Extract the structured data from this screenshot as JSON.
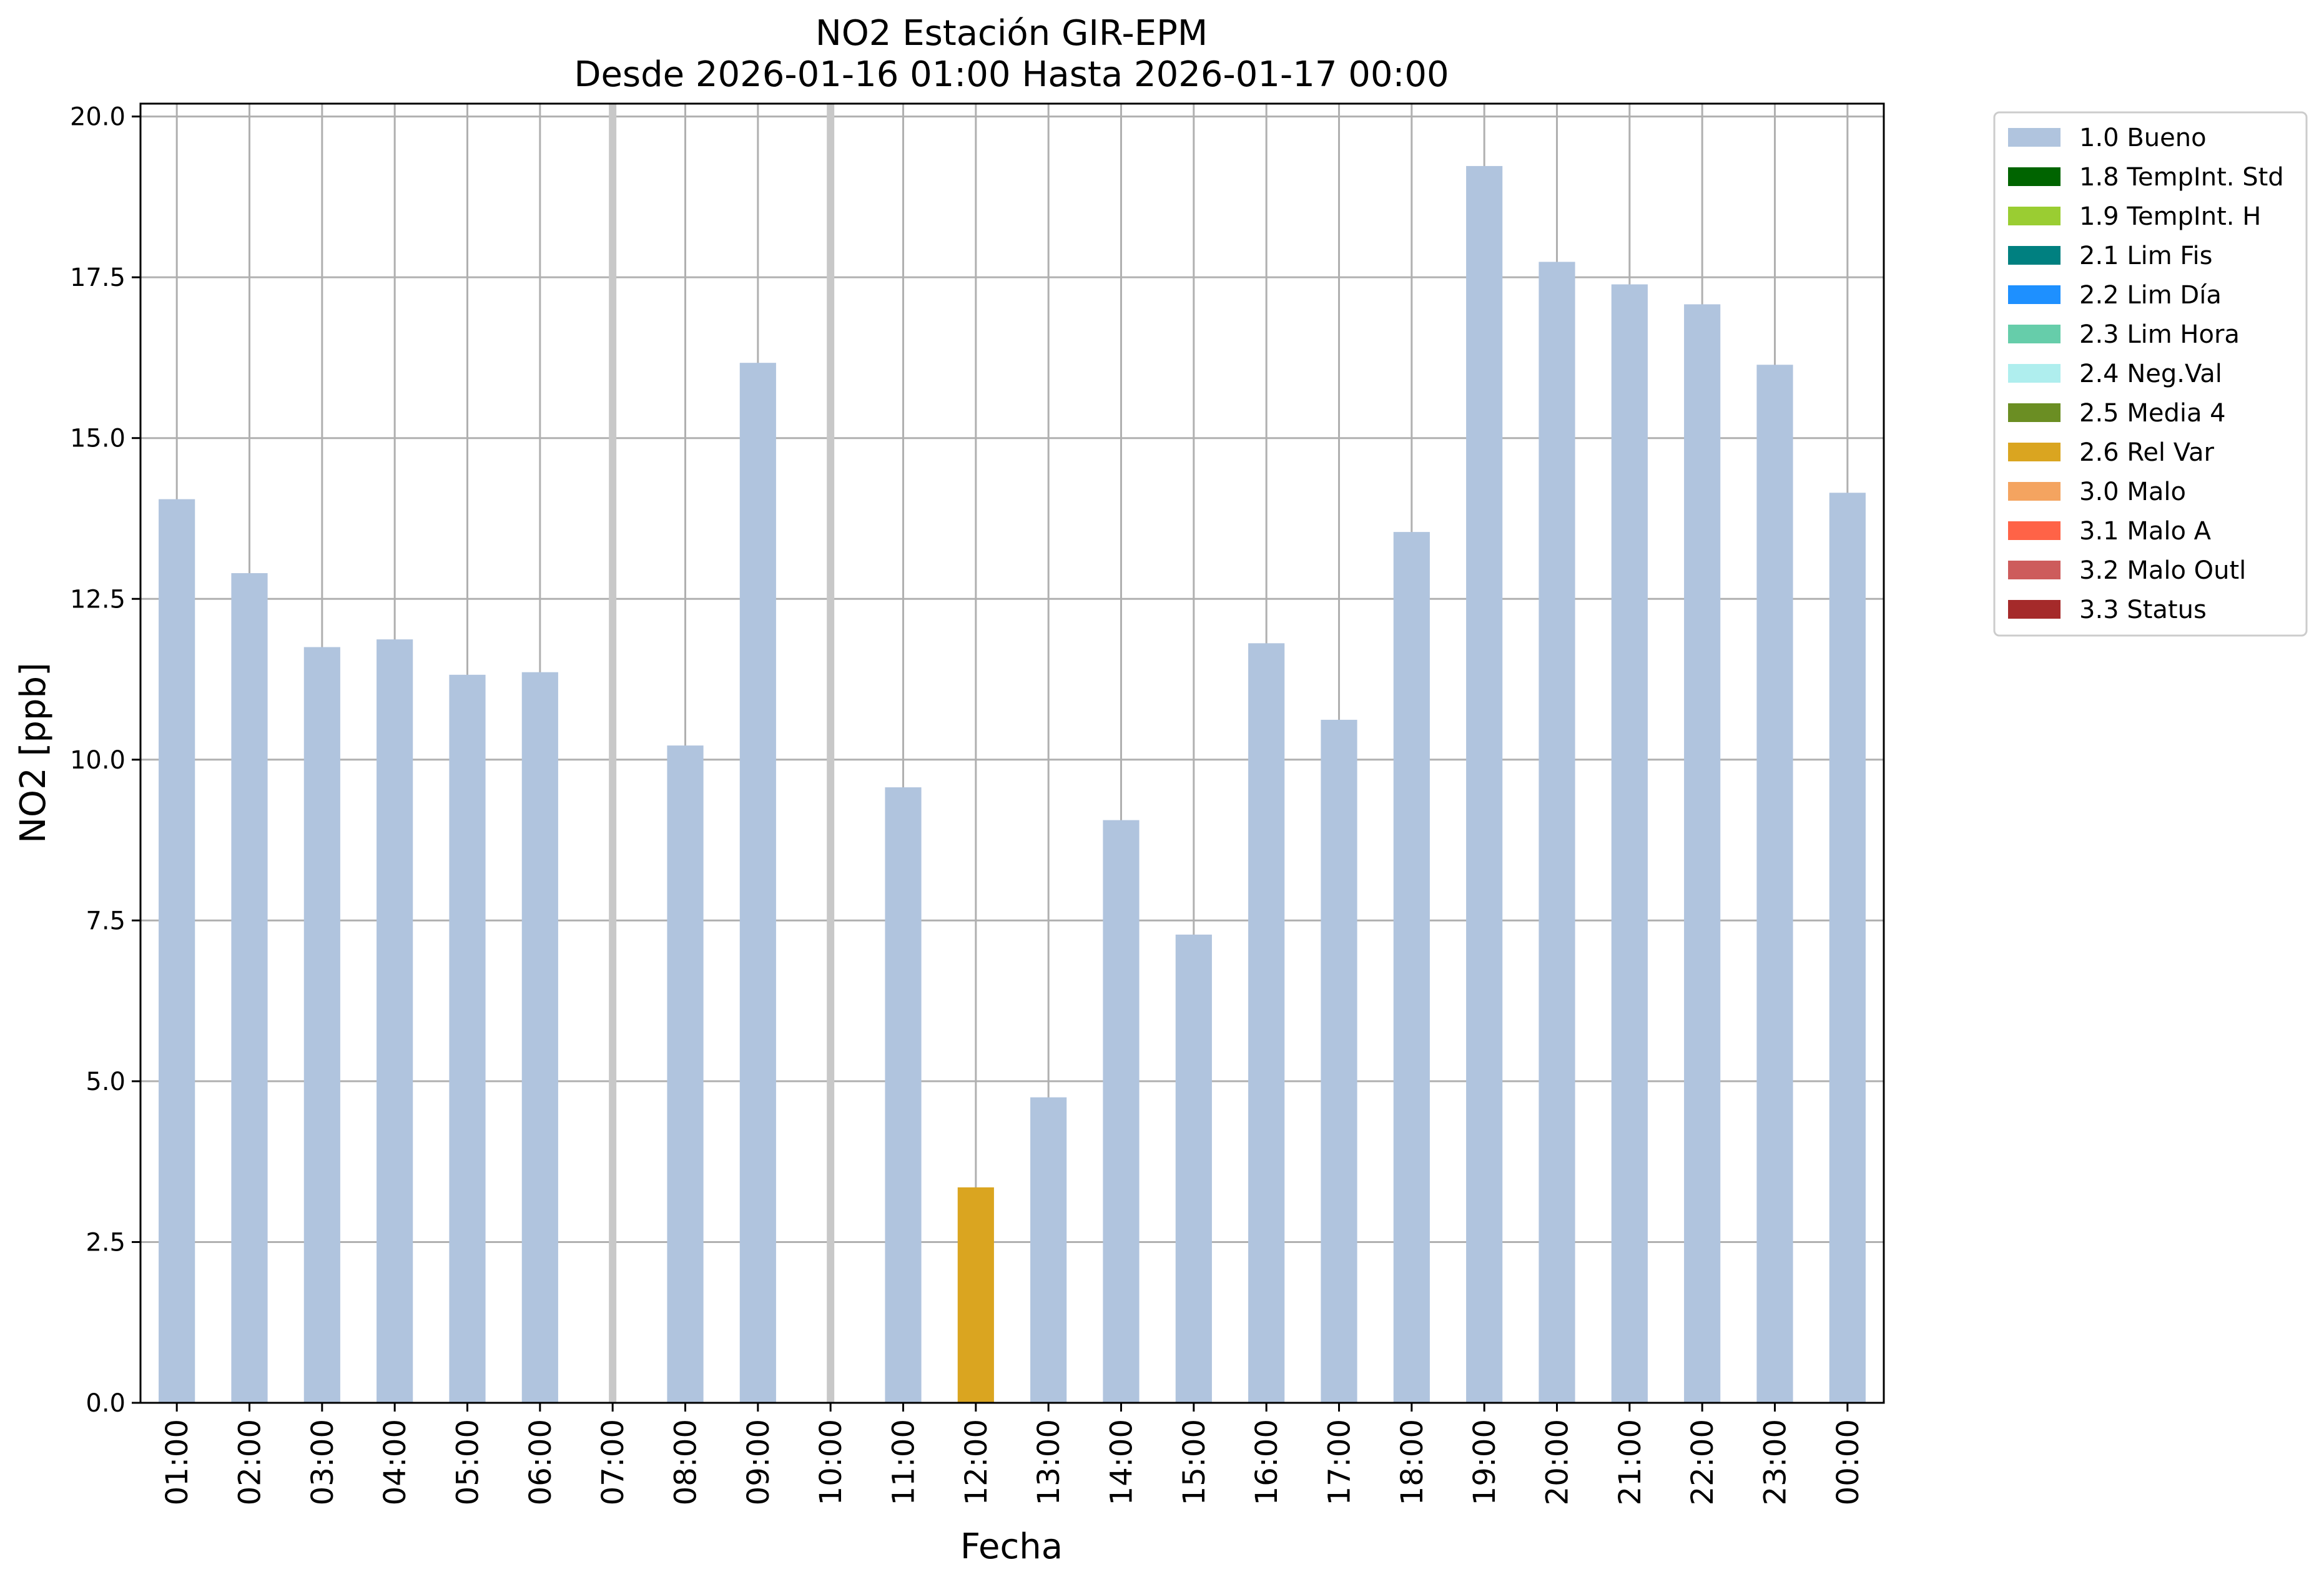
{
  "chart_data": {
    "type": "bar",
    "title": "NO2 Estación GIR-EPM",
    "subtitle": "Desde 2026-01-16 01:00 Hasta 2026-01-17 00:00",
    "xlabel": "Fecha",
    "ylabel": "NO2 [ppb]",
    "ylim": [
      0,
      20.2
    ],
    "yticks": [
      "0.0",
      "2.5",
      "5.0",
      "7.5",
      "10.0",
      "12.5",
      "15.0",
      "17.5",
      "20.0"
    ],
    "ytick_values": [
      0,
      2.5,
      5,
      7.5,
      10,
      12.5,
      15,
      17.5,
      20
    ],
    "grid": true,
    "legend_position": "outside right, top",
    "categories": [
      "01:00",
      "02:00",
      "03:00",
      "04:00",
      "05:00",
      "06:00",
      "07:00",
      "08:00",
      "09:00",
      "10:00",
      "11:00",
      "12:00",
      "13:00",
      "14:00",
      "15:00",
      "16:00",
      "17:00",
      "18:00",
      "19:00",
      "20:00",
      "21:00",
      "22:00",
      "23:00",
      "00:00"
    ],
    "values": [
      14.05,
      12.9,
      11.75,
      11.87,
      11.32,
      11.36,
      null,
      10.22,
      16.17,
      null,
      9.57,
      3.35,
      4.75,
      9.06,
      7.28,
      11.81,
      10.62,
      13.54,
      19.23,
      17.74,
      17.39,
      17.08,
      16.14,
      14.15
    ],
    "flags": [
      "1.0 Bueno",
      "1.0 Bueno",
      "1.0 Bueno",
      "1.0 Bueno",
      "1.0 Bueno",
      "1.0 Bueno",
      null,
      "1.0 Bueno",
      "1.0 Bueno",
      null,
      "1.0 Bueno",
      "2.6 Rel Var",
      "1.0 Bueno",
      "1.0 Bueno",
      "1.0 Bueno",
      "1.0 Bueno",
      "1.0 Bueno",
      "1.0 Bueno",
      "1.0 Bueno",
      "1.0 Bueno",
      "1.0 Bueno",
      "1.0 Bueno",
      "1.0 Bueno",
      "1.0 Bueno"
    ],
    "missing_markers": [
      "07:00",
      "10:00"
    ],
    "legend": [
      {
        "label": "1.0 Bueno",
        "color": "#b0c4de"
      },
      {
        "label": "1.8 TempInt. Std",
        "color": "#006400"
      },
      {
        "label": "1.9 TempInt. H",
        "color": "#9acd32"
      },
      {
        "label": "2.1 Lim Fis",
        "color": "#008080"
      },
      {
        "label": "2.2 Lim Día",
        "color": "#1e90ff"
      },
      {
        "label": "2.3 Lim Hora",
        "color": "#66cdaa"
      },
      {
        "label": "2.4 Neg.Val",
        "color": "#afeeee"
      },
      {
        "label": "2.5 Media 4",
        "color": "#6b8e23"
      },
      {
        "label": "2.6 Rel Var",
        "color": "#daa520"
      },
      {
        "label": "3.0 Malo",
        "color": "#f4a460"
      },
      {
        "label": "3.1 Malo A",
        "color": "#ff6347"
      },
      {
        "label": "3.2 Malo Outl",
        "color": "#cd5c5c"
      },
      {
        "label": "3.3 Status",
        "color": "#a52a2a"
      }
    ]
  }
}
